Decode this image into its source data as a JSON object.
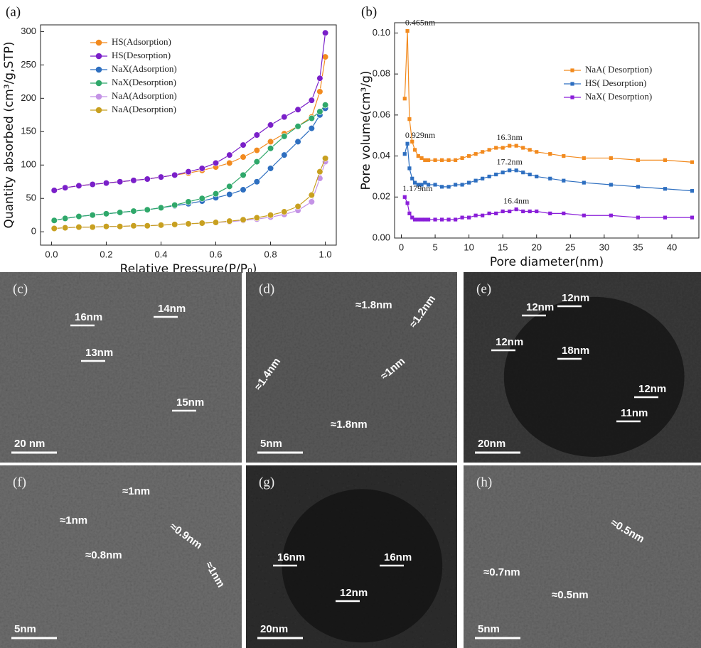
{
  "chart_data": [
    {
      "type": "line",
      "panel": "(a)",
      "marker": "circle",
      "legend": "upper left",
      "xlabel": "Relative Pressure(P/P₀)",
      "ylabel": "Quantity absorbed (cm³/g,STP)",
      "xlim": [
        -0.04,
        1.04
      ],
      "xticks": [
        {
          "value": 0,
          "label": "0.0"
        },
        0.2,
        0.4,
        0.6,
        0.8,
        {
          "value": 1,
          "label": "1.0"
        }
      ],
      "ylim": [
        -20,
        310
      ],
      "yticks": [
        0,
        50,
        100,
        150,
        200,
        250,
        300
      ],
      "x": [
        0.01,
        0.05,
        0.1,
        0.15,
        0.2,
        0.25,
        0.3,
        0.35,
        0.4,
        0.45,
        0.5,
        0.55,
        0.6,
        0.65,
        0.7,
        0.75,
        0.8,
        0.85,
        0.9,
        0.95,
        0.98,
        1.0
      ],
      "series": [
        {
          "name": "HS(Adsorption)",
          "color": "#f28a1e",
          "values": [
            62,
            66,
            69,
            71,
            73,
            75,
            77,
            79,
            82,
            85,
            88,
            92,
            97,
            103,
            112,
            122,
            135,
            147,
            158,
            172,
            210,
            262
          ]
        },
        {
          "name": "HS(Desorption)",
          "color": "#7a1fc9",
          "values": [
            62,
            66,
            69,
            71,
            73,
            75,
            77,
            79,
            82,
            85,
            90,
            95,
            103,
            115,
            130,
            145,
            160,
            172,
            183,
            197,
            230,
            298
          ]
        },
        {
          "name": "NaX(Adsorption)",
          "color": "#2e6fc0",
          "values": [
            17,
            20,
            23,
            25,
            27,
            29,
            31,
            33,
            36,
            39,
            42,
            46,
            51,
            56,
            63,
            75,
            95,
            115,
            135,
            155,
            175,
            185
          ]
        },
        {
          "name": "NaX(Desorption)",
          "color": "#2fa86a",
          "values": [
            17,
            20,
            23,
            25,
            27,
            29,
            31,
            33,
            36,
            40,
            45,
            50,
            57,
            68,
            85,
            105,
            125,
            143,
            158,
            170,
            180,
            190
          ]
        },
        {
          "name": "NaA(Adsorption)",
          "color": "#c493e6",
          "values": [
            5,
            6,
            7,
            7,
            8,
            8,
            9,
            9,
            10,
            11,
            12,
            13,
            14,
            15,
            17,
            19,
            22,
            26,
            32,
            45,
            80,
            105
          ]
        },
        {
          "name": "NaA(Desorption)",
          "color": "#c8a020",
          "values": [
            5,
            6,
            7,
            7,
            8,
            8,
            9,
            9,
            10,
            11,
            12,
            13,
            14,
            16,
            18,
            21,
            25,
            30,
            38,
            55,
            90,
            110
          ]
        }
      ]
    },
    {
      "type": "line",
      "panel": "(b)",
      "marker": "square",
      "legend": "upper right",
      "xlabel": "Pore diameter(nm)",
      "ylabel": "Pore volume(cm³/g)",
      "xlim": [
        -1,
        44
      ],
      "xticks": [
        0,
        5,
        10,
        15,
        20,
        25,
        30,
        35,
        40
      ],
      "ylim": [
        0,
        0.105
      ],
      "yticks": [
        {
          "value": 0,
          "label": "0.00"
        },
        0.02,
        0.04,
        0.06,
        0.08,
        {
          "value": 0.1,
          "label": "0.10"
        }
      ],
      "x": [
        0.5,
        0.9,
        1.2,
        1.6,
        2,
        2.5,
        3,
        3.5,
        4,
        5,
        6,
        7,
        8,
        9,
        10,
        11,
        12,
        13,
        14,
        15,
        16,
        17,
        18,
        19,
        20,
        22,
        24,
        27,
        31,
        35,
        39,
        43
      ],
      "series": [
        {
          "name": "NaA( Desorption)",
          "color": "#f28a1e",
          "annotations": [
            "0.465nm",
            "16.3nm"
          ],
          "values": [
            0.068,
            0.101,
            0.058,
            0.047,
            0.043,
            0.04,
            0.039,
            0.038,
            0.038,
            0.038,
            0.038,
            0.038,
            0.038,
            0.039,
            0.04,
            0.041,
            0.042,
            0.043,
            0.044,
            0.044,
            0.045,
            0.045,
            0.044,
            0.043,
            0.042,
            0.041,
            0.04,
            0.039,
            0.039,
            0.038,
            0.038,
            0.037
          ]
        },
        {
          "name": "HS( Desorption)",
          "color": "#2e6fc0",
          "annotations": [
            "0.929nm",
            "17.2nm"
          ],
          "values": [
            0.041,
            0.046,
            0.034,
            0.029,
            0.027,
            0.026,
            0.026,
            0.027,
            0.026,
            0.026,
            0.025,
            0.025,
            0.026,
            0.026,
            0.027,
            0.028,
            0.029,
            0.03,
            0.031,
            0.032,
            0.033,
            0.033,
            0.032,
            0.031,
            0.03,
            0.029,
            0.028,
            0.027,
            0.026,
            0.025,
            0.024,
            0.023
          ]
        },
        {
          "name": "NaX( Desorption)",
          "color": "#8a1fd9",
          "annotations": [
            "1.179nm",
            "16.4nm"
          ],
          "values": [
            0.02,
            0.017,
            0.012,
            0.01,
            0.009,
            0.009,
            0.009,
            0.009,
            0.009,
            0.009,
            0.009,
            0.009,
            0.009,
            0.01,
            0.01,
            0.011,
            0.011,
            0.012,
            0.012,
            0.013,
            0.013,
            0.014,
            0.013,
            0.013,
            0.013,
            0.012,
            0.012,
            0.011,
            0.011,
            0.01,
            0.01,
            0.01
          ]
        }
      ]
    }
  ],
  "images": [
    {
      "label": "(c)",
      "annotations": [
        "16nm",
        "14nm",
        "13nm",
        "15nm"
      ],
      "scale_bar": "20 nm"
    },
    {
      "label": "(d)",
      "annotations": [
        "≈1.8nm",
        "≈1.2nm",
        "≈1.4nm",
        "≈1nm",
        "≈1.8nm"
      ],
      "scale_bar": "5nm"
    },
    {
      "label": "(e)",
      "annotations": [
        "12nm",
        "12nm",
        "12nm",
        "18nm",
        "12nm",
        "11nm"
      ],
      "scale_bar": "20nm"
    },
    {
      "label": "(f)",
      "annotations": [
        "≈1nm",
        "≈1nm",
        "≈0.9nm",
        "≈0.8nm",
        "≈1nm"
      ],
      "scale_bar": "5nm"
    },
    {
      "label": "(g)",
      "annotations": [
        "16nm",
        "16nm",
        "12nm"
      ],
      "scale_bar": "20nm"
    },
    {
      "label": "(h)",
      "annotations": [
        "≈0.5nm",
        "≈0.7nm",
        "≈0.5nm"
      ],
      "scale_bar": "5nm"
    }
  ]
}
